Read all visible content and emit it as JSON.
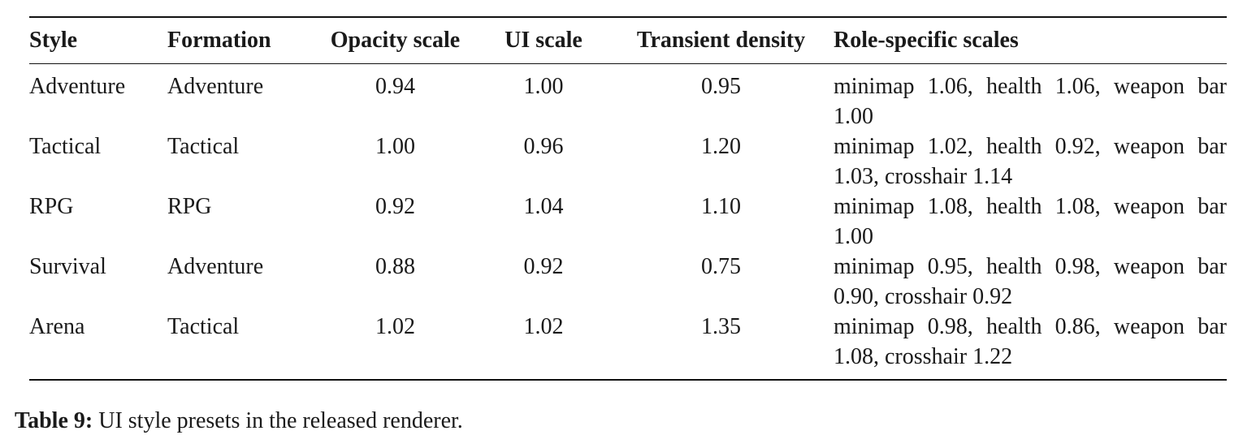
{
  "table": {
    "headers": {
      "style": "Style",
      "formation": "Formation",
      "opacity_scale": "Opacity scale",
      "ui_scale": "UI scale",
      "transient_density": "Transient density",
      "role_specific_scales": "Role-specific scales"
    },
    "rows": [
      {
        "style": "Adventure",
        "formation": "Adventure",
        "opacity_scale": "0.94",
        "ui_scale": "1.00",
        "transient_density": "0.95",
        "role_specific_scales": "minimap 1.06, health 1.06, weapon bar 1.00"
      },
      {
        "style": "Tactical",
        "formation": "Tactical",
        "opacity_scale": "1.00",
        "ui_scale": "0.96",
        "transient_density": "1.20",
        "role_specific_scales": "minimap 1.02, health 0.92, weapon bar 1.03, crosshair 1.14"
      },
      {
        "style": "RPG",
        "formation": "RPG",
        "opacity_scale": "0.92",
        "ui_scale": "1.04",
        "transient_density": "1.10",
        "role_specific_scales": "minimap 1.08, health 1.08, weapon bar 1.00"
      },
      {
        "style": "Survival",
        "formation": "Adventure",
        "opacity_scale": "0.88",
        "ui_scale": "0.92",
        "transient_density": "0.75",
        "role_specific_scales": "minimap 0.95, health 0.98, weapon bar 0.90, crosshair 0.92"
      },
      {
        "style": "Arena",
        "formation": "Tactical",
        "opacity_scale": "1.02",
        "ui_scale": "1.02",
        "transient_density": "1.35",
        "role_specific_scales": "minimap 0.98, health 0.86, weapon bar 1.08, crosshair 1.22"
      }
    ]
  },
  "caption": {
    "label": "Table 9:",
    "text": " UI style presets in the released renderer."
  }
}
